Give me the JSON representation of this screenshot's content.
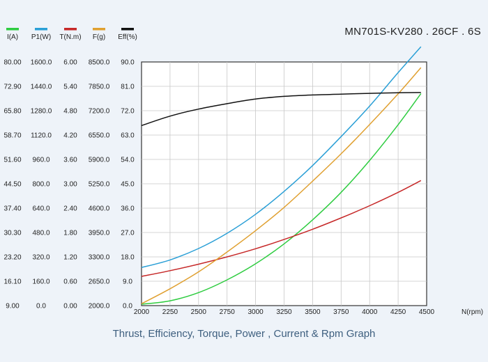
{
  "title": "MN701S-KV280 . 26CF . 6S",
  "caption": "Thrust, Efficiency, Torque, Power , Current & Rpm Graph",
  "chart_data": {
    "type": "line",
    "title": "MN701S-KV280 . 26CF . 6S",
    "xlabel": "N(rpm)",
    "xlim": [
      2000,
      4500
    ],
    "x_ticks": [
      "2000",
      "2250",
      "2500",
      "2750",
      "3000",
      "3250",
      "3500",
      "3750",
      "4000",
      "4250",
      "4500"
    ],
    "grid": true,
    "legend_position": "top-left",
    "axes": [
      {
        "label": "I(A)",
        "color": "#2ecc40",
        "ticks": [
          "9.00",
          "16.10",
          "23.20",
          "30.30",
          "37.40",
          "44.50",
          "51.60",
          "58.70",
          "65.80",
          "72.90",
          "80.00"
        ]
      },
      {
        "label": "P1(W)",
        "color": "#2a9fd6",
        "ticks": [
          "0.0",
          "160.0",
          "320.0",
          "480.0",
          "640.0",
          "800.0",
          "960.0",
          "1120.0",
          "1280.0",
          "1440.0",
          "1600.0"
        ]
      },
      {
        "label": "T(N.m)",
        "color": "#c62828",
        "ticks": [
          "0.00",
          "0.60",
          "1.20",
          "1.80",
          "2.40",
          "3.00",
          "3.60",
          "4.20",
          "4.80",
          "5.40",
          "6.00"
        ]
      },
      {
        "label": "F(g)",
        "color": "#e0a030",
        "ticks": [
          "2000.0",
          "2650.0",
          "3300.0",
          "3950.0",
          "4600.0",
          "5250.0",
          "5900.0",
          "6550.0",
          "7200.0",
          "7850.0",
          "8500.0"
        ]
      },
      {
        "label": "Eff(%)",
        "color": "#111111",
        "ticks": [
          "0.0",
          "9.0",
          "18.0",
          "27.0",
          "36.0",
          "45.0",
          "54.0",
          "63.0",
          "72.0",
          "81.0",
          "90.0"
        ]
      }
    ],
    "series": [
      {
        "name": "I(A)",
        "color": "#2ecc40",
        "ymin": 9.0,
        "ymax": 80.0,
        "x": [
          2000,
          2250,
          2500,
          2750,
          3000,
          3250,
          3500,
          3750,
          4000,
          4250,
          4450
        ],
        "y": [
          9.4,
          10.4,
          12.8,
          16.5,
          21.2,
          27.0,
          34.0,
          42.0,
          51.3,
          61.7,
          70.8
        ]
      },
      {
        "name": "P1(W)",
        "color": "#2a9fd6",
        "ymin": 0,
        "ymax": 1600,
        "x": [
          2000,
          2250,
          2500,
          2750,
          3000,
          3250,
          3500,
          3750,
          4000,
          4250,
          4450
        ],
        "y": [
          250,
          300,
          375,
          475,
          600,
          750,
          920,
          1110,
          1310,
          1530,
          1700
        ]
      },
      {
        "name": "T(N.m)",
        "color": "#c62828",
        "ymin": 0,
        "ymax": 6.0,
        "x": [
          2000,
          2250,
          2500,
          2750,
          3000,
          3250,
          3500,
          3750,
          4000,
          4250,
          4450
        ],
        "y": [
          0.72,
          0.86,
          1.02,
          1.2,
          1.4,
          1.63,
          1.88,
          2.16,
          2.46,
          2.79,
          3.08
        ]
      },
      {
        "name": "F(g)",
        "color": "#e0a030",
        "ymin": 2000,
        "ymax": 8500,
        "x": [
          2000,
          2250,
          2500,
          2750,
          3000,
          3250,
          3500,
          3750,
          4000,
          4250,
          4450
        ],
        "y": [
          2050,
          2450,
          2900,
          3430,
          4000,
          4620,
          5320,
          6050,
          6830,
          7650,
          8350
        ]
      },
      {
        "name": "Eff(%)",
        "color": "#111111",
        "ymin": 0,
        "ymax": 90,
        "x": [
          2000,
          2250,
          2500,
          2750,
          3000,
          3250,
          3500,
          3750,
          4000,
          4250,
          4450
        ],
        "y": [
          66.5,
          70.0,
          72.6,
          74.6,
          76.3,
          77.3,
          77.8,
          78.1,
          78.4,
          78.6,
          78.7
        ]
      }
    ]
  }
}
